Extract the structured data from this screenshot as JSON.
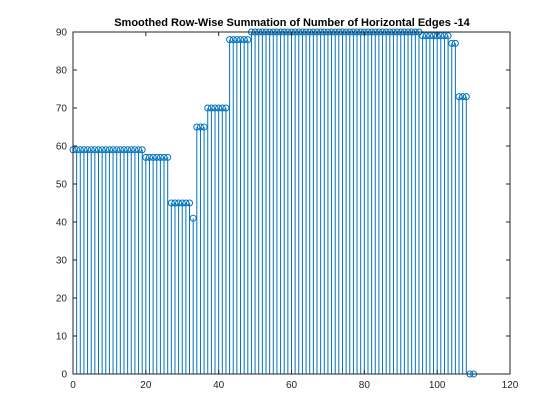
{
  "chart_data": {
    "type": "stem",
    "title": "Smoothed Row-Wise Summation of Number of Horizontal Edges -14",
    "xlabel": "",
    "ylabel": "",
    "xlim": [
      0,
      120
    ],
    "ylim": [
      0,
      90
    ],
    "xticks": [
      0,
      20,
      40,
      60,
      80,
      100,
      120
    ],
    "yticks": [
      0,
      10,
      20,
      30,
      40,
      50,
      60,
      70,
      80,
      90
    ],
    "grid": false,
    "color": "#0072BD",
    "x": [
      0,
      1,
      2,
      3,
      4,
      5,
      6,
      7,
      8,
      9,
      10,
      11,
      12,
      13,
      14,
      15,
      16,
      17,
      18,
      19,
      20,
      21,
      22,
      23,
      24,
      25,
      26,
      27,
      28,
      29,
      30,
      31,
      32,
      33,
      34,
      35,
      36,
      37,
      38,
      39,
      40,
      41,
      42,
      43,
      44,
      45,
      46,
      47,
      48,
      49,
      50,
      51,
      52,
      53,
      54,
      55,
      56,
      57,
      58,
      59,
      60,
      61,
      62,
      63,
      64,
      65,
      66,
      67,
      68,
      69,
      70,
      71,
      72,
      73,
      74,
      75,
      76,
      77,
      78,
      79,
      80,
      81,
      82,
      83,
      84,
      85,
      86,
      87,
      88,
      89,
      90,
      91,
      92,
      93,
      94,
      95,
      96,
      97,
      98,
      99,
      100,
      101,
      102,
      103,
      104,
      105,
      106,
      107,
      108,
      109,
      110
    ],
    "values": [
      59,
      59,
      59,
      59,
      59,
      59,
      59,
      59,
      59,
      59,
      59,
      59,
      59,
      59,
      59,
      59,
      59,
      59,
      59,
      59,
      57,
      57,
      57,
      57,
      57,
      57,
      57,
      45,
      45,
      45,
      45,
      45,
      45,
      41,
      65,
      65,
      65,
      70,
      70,
      70,
      70,
      70,
      70,
      88,
      88,
      88,
      88,
      88,
      88,
      90,
      90,
      90,
      90,
      90,
      90,
      90,
      90,
      90,
      90,
      90,
      90,
      90,
      90,
      90,
      90,
      90,
      90,
      90,
      90,
      90,
      90,
      90,
      90,
      90,
      90,
      90,
      90,
      90,
      90,
      90,
      90,
      90,
      90,
      90,
      90,
      90,
      90,
      90,
      90,
      90,
      90,
      90,
      90,
      90,
      90,
      90,
      89,
      89,
      89,
      89,
      89,
      89,
      89,
      89,
      87,
      87,
      73,
      73,
      73,
      0,
      0
    ]
  }
}
